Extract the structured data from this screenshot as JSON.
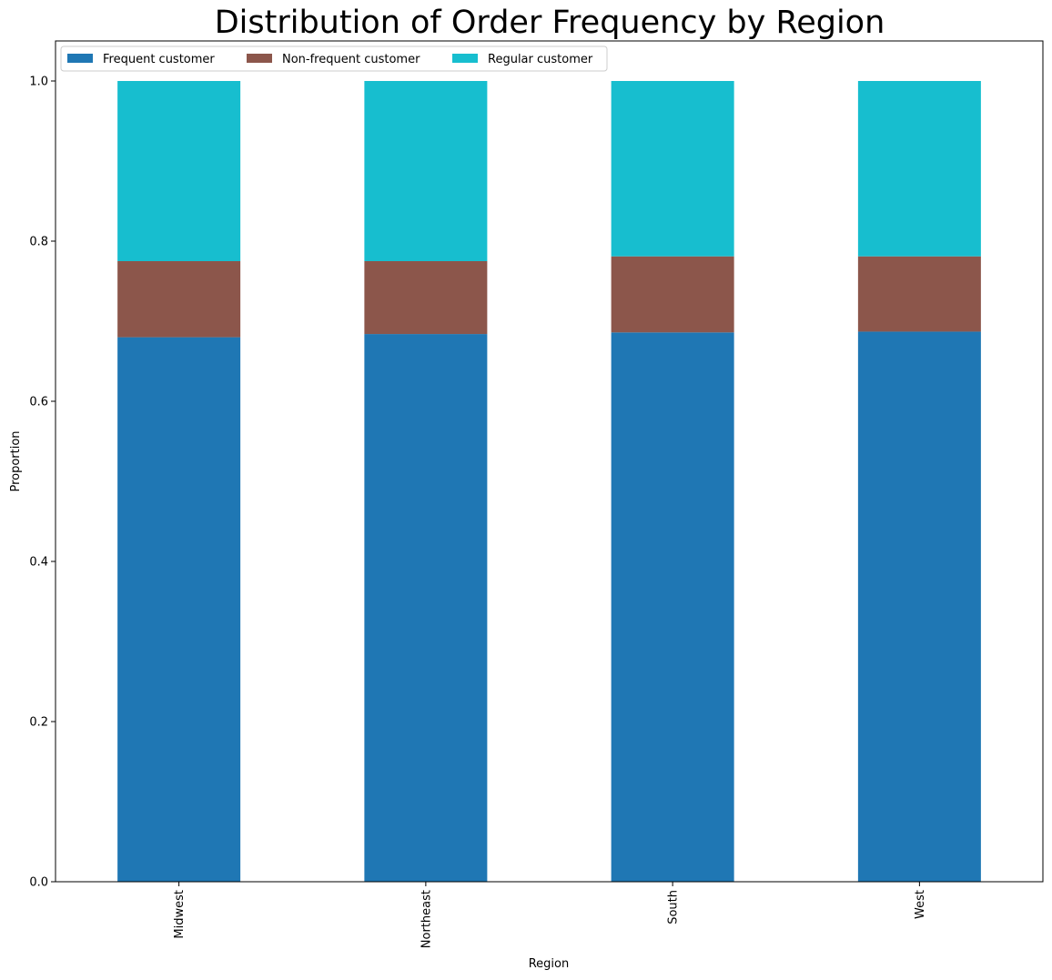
{
  "chart_data": {
    "type": "bar",
    "stacked": true,
    "title": "Distribution of Order Frequency by Region",
    "xlabel": "Region",
    "ylabel": "Proportion",
    "categories": [
      "Midwest",
      "Northeast",
      "South",
      "West"
    ],
    "series": [
      {
        "name": "Frequent customer",
        "color": "#1f77b4",
        "values": [
          0.68,
          0.684,
          0.686,
          0.687
        ]
      },
      {
        "name": "Non-frequent customer",
        "color": "#8c564b",
        "values": [
          0.095,
          0.091,
          0.095,
          0.094
        ]
      },
      {
        "name": "Regular customer",
        "color": "#17becf",
        "values": [
          0.225,
          0.225,
          0.219,
          0.219
        ]
      }
    ],
    "ylim": [
      0,
      1.05
    ],
    "yticks": [
      0.0,
      0.2,
      0.4,
      0.6,
      0.8,
      1.0
    ],
    "ytick_labels": [
      "0.0",
      "0.2",
      "0.4",
      "0.6",
      "0.8",
      "1.0"
    ],
    "grid": false,
    "legend_position": "top-left"
  }
}
